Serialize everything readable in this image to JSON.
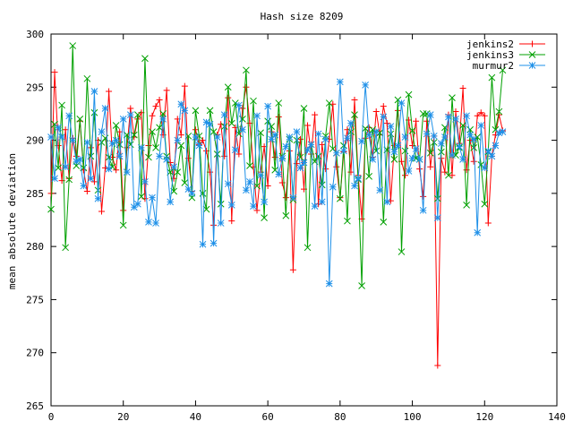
{
  "chart_data": {
    "type": "line",
    "title": "Hash size 8209",
    "xlabel": "",
    "ylabel": "mean absolute deviation",
    "xlim": [
      0,
      140
    ],
    "ylim": [
      265,
      300
    ],
    "xticks": [
      0,
      20,
      40,
      60,
      80,
      100,
      120,
      140
    ],
    "yticks": [
      265,
      270,
      275,
      280,
      285,
      290,
      295,
      300
    ],
    "grid": false,
    "legend_position": "top-right",
    "series": [
      {
        "name": "jenkins2",
        "color": "#ff0000",
        "marker": "plus",
        "x": [
          0,
          1,
          2,
          3,
          4,
          5,
          6,
          7,
          8,
          9,
          10,
          11,
          12,
          13,
          14,
          15,
          16,
          17,
          18,
          19,
          20,
          21,
          22,
          23,
          24,
          25,
          26,
          27,
          28,
          29,
          30,
          31,
          32,
          33,
          34,
          35,
          36,
          37,
          38,
          39,
          40,
          41,
          42,
          43,
          44,
          45,
          46,
          47,
          48,
          49,
          50,
          51,
          52,
          53,
          54,
          55,
          56,
          57,
          58,
          59,
          60,
          61,
          62,
          63,
          64,
          65,
          66,
          67,
          68,
          69,
          70,
          71,
          72,
          73,
          74,
          75,
          76,
          77,
          78,
          79,
          80,
          81,
          82,
          83,
          84,
          85,
          86,
          87,
          88,
          89,
          90,
          91,
          92,
          93,
          94,
          95,
          96,
          97,
          98,
          99,
          100,
          101,
          102,
          103,
          104,
          105,
          106,
          107,
          108,
          109,
          110,
          111,
          112,
          113,
          114,
          115,
          116,
          117,
          118,
          119,
          120,
          121,
          122,
          123,
          124,
          125
        ],
        "y": [
          285.0,
          296.4,
          289.5,
          286.2,
          291.0,
          286.4,
          290.2,
          288.5,
          291.8,
          287.2,
          285.2,
          289.3,
          286.1,
          290.0,
          283.3,
          287.4,
          294.6,
          288.4,
          287.2,
          290.8,
          283.4,
          289.3,
          293.0,
          290.3,
          292.0,
          292.6,
          284.5,
          289.5,
          292.3,
          293.2,
          293.8,
          290.5,
          294.7,
          287.9,
          286.4,
          292.0,
          290.5,
          295.1,
          288.3,
          285.2,
          291.0,
          289.6,
          290.0,
          289.0,
          287.0,
          282.0,
          290.5,
          291.5,
          288.5,
          294.0,
          282.4,
          291.2,
          288.7,
          293.0,
          295.0,
          291.6,
          287.5,
          283.4,
          287.0,
          289.4,
          285.7,
          290.8,
          288.4,
          292.2,
          286.0,
          284.6,
          289.0,
          277.8,
          287.8,
          290.1,
          285.4,
          291.4,
          288.7,
          292.4,
          284.0,
          289.6,
          287.3,
          290.1,
          293.4,
          287.5,
          284.6,
          288.9,
          291.0,
          287.0,
          293.8,
          286.7,
          282.6,
          290.2,
          291.2,
          288.4,
          292.7,
          290.5,
          293.2,
          291.6,
          284.3,
          289.5,
          292.8,
          288.0,
          286.7,
          291.9,
          289.5,
          291.8,
          287.3,
          284.7,
          291.8,
          287.5,
          290.4,
          268.8,
          288.3,
          287.0,
          292.4,
          286.7,
          292.7,
          289.7,
          294.9,
          287.2,
          290.0,
          288.0,
          292.3,
          292.6,
          292.3,
          282.2,
          288.5,
          290.5,
          292.4,
          290.9
        ]
      },
      {
        "name": "jenkins3",
        "color": "#00a000",
        "marker": "cross",
        "x": [
          0,
          1,
          2,
          3,
          4,
          5,
          6,
          7,
          8,
          9,
          10,
          11,
          12,
          13,
          14,
          15,
          16,
          17,
          18,
          19,
          20,
          21,
          22,
          23,
          24,
          25,
          26,
          27,
          28,
          29,
          30,
          31,
          32,
          33,
          34,
          35,
          36,
          37,
          38,
          39,
          40,
          41,
          42,
          43,
          44,
          45,
          46,
          47,
          48,
          49,
          50,
          51,
          52,
          53,
          54,
          55,
          56,
          57,
          58,
          59,
          60,
          61,
          62,
          63,
          64,
          65,
          66,
          67,
          68,
          69,
          70,
          71,
          72,
          73,
          74,
          75,
          76,
          77,
          78,
          79,
          80,
          81,
          82,
          83,
          84,
          85,
          86,
          87,
          88,
          89,
          90,
          91,
          92,
          93,
          94,
          95,
          96,
          97,
          98,
          99,
          100,
          101,
          102,
          103,
          104,
          105,
          106,
          107,
          108,
          109,
          110,
          111,
          112,
          113,
          114,
          115,
          116,
          117,
          118,
          119,
          120,
          121,
          122,
          123,
          124,
          125
        ],
        "y": [
          283.5,
          291.5,
          287.4,
          293.3,
          279.9,
          286.3,
          298.9,
          287.6,
          292.0,
          287.4,
          295.8,
          288.5,
          292.6,
          285.3,
          289.8,
          290.2,
          288.4,
          287.5,
          291.4,
          289.6,
          282.0,
          290.5,
          289.6,
          290.5,
          292.4,
          284.7,
          297.7,
          288.4,
          290.8,
          289.3,
          291.2,
          292.5,
          288.5,
          287.0,
          285.2,
          287.0,
          289.5,
          286.0,
          290.4,
          284.6,
          292.8,
          290.4,
          285.0,
          283.5,
          292.8,
          290.8,
          288.7,
          284.0,
          291.3,
          295.0,
          291.6,
          293.5,
          290.6,
          292.0,
          296.6,
          287.6,
          293.7,
          285.7,
          290.7,
          282.7,
          291.8,
          291.3,
          287.2,
          293.5,
          288.5,
          282.9,
          290.1,
          284.4,
          290.0,
          288.4,
          293.0,
          279.9,
          289.6,
          288.0,
          288.5,
          285.8,
          290.4,
          293.5,
          289.2,
          288.8,
          284.5,
          289.5,
          282.4,
          290.8,
          292.4,
          286.3,
          276.3,
          291.1,
          286.6,
          291.0,
          289.0,
          290.7,
          282.3,
          289.1,
          290.6,
          288.2,
          293.8,
          279.5,
          289.0,
          294.3,
          290.9,
          288.3,
          288.2,
          292.5,
          292.5,
          288.8,
          289.8,
          284.5,
          288.9,
          291.2,
          286.7,
          294.0,
          288.6,
          289.3,
          291.4,
          283.9,
          291.0,
          289.3,
          290.3,
          287.7,
          284.0,
          288.9,
          295.9,
          291.0,
          292.7,
          296.6
        ]
      },
      {
        "name": "murmur2",
        "color": "#1e90e8",
        "marker": "star",
        "x": [
          0,
          1,
          2,
          3,
          4,
          5,
          6,
          7,
          8,
          9,
          10,
          11,
          12,
          13,
          14,
          15,
          16,
          17,
          18,
          19,
          20,
          21,
          22,
          23,
          24,
          25,
          26,
          27,
          28,
          29,
          30,
          31,
          32,
          33,
          34,
          35,
          36,
          37,
          38,
          39,
          40,
          41,
          42,
          43,
          44,
          45,
          46,
          47,
          48,
          49,
          50,
          51,
          52,
          53,
          54,
          55,
          56,
          57,
          58,
          59,
          60,
          61,
          62,
          63,
          64,
          65,
          66,
          67,
          68,
          69,
          70,
          71,
          72,
          73,
          74,
          75,
          76,
          77,
          78,
          79,
          80,
          81,
          82,
          83,
          84,
          85,
          86,
          87,
          88,
          89,
          90,
          91,
          92,
          93,
          94,
          95,
          96,
          97,
          98,
          99,
          100,
          101,
          102,
          103,
          104,
          105,
          106,
          107,
          108,
          109,
          110,
          111,
          112,
          113,
          114,
          115,
          116,
          117,
          118,
          119,
          120,
          121,
          122,
          123,
          124,
          125
        ],
        "y": [
          290.3,
          286.4,
          291.2,
          290.3,
          287.5,
          292.3,
          290.0,
          288.0,
          288.2,
          285.7,
          289.8,
          286.4,
          294.6,
          284.5,
          290.8,
          293.0,
          287.3,
          289.7,
          290.0,
          288.5,
          292.0,
          287.0,
          292.4,
          283.7,
          284.0,
          289.3,
          286.1,
          282.3,
          284.6,
          282.2,
          288.5,
          292.0,
          288.2,
          284.2,
          287.5,
          290.0,
          293.4,
          292.8,
          285.4,
          285.0,
          290.3,
          289.5,
          280.2,
          291.7,
          291.5,
          280.3,
          290.3,
          282.2,
          292.4,
          285.9,
          283.9,
          289.1,
          293.3,
          291.0,
          285.3,
          286.1,
          283.8,
          292.3,
          286.7,
          284.2,
          293.2,
          290.1,
          290.5,
          286.8,
          288.3,
          289.4,
          290.3,
          284.6,
          290.8,
          287.4,
          287.9,
          289.1,
          289.6,
          283.8,
          290.6,
          284.2,
          290.1,
          276.5,
          285.6,
          288.8,
          295.5,
          289.0,
          290.2,
          291.6,
          285.7,
          286.4,
          289.9,
          295.2,
          290.5,
          288.2,
          290.8,
          285.3,
          292.2,
          284.2,
          291.3,
          288.9,
          289.5,
          293.5,
          290.3,
          287.1,
          288.3,
          289.2,
          288.2,
          283.4,
          290.6,
          292.4,
          290.4,
          282.7,
          289.7,
          290.3,
          292.2,
          288.6,
          292.0,
          289.4,
          288.2,
          292.3,
          290.5,
          290.1,
          281.3,
          291.4,
          287.4,
          289.0,
          288.5,
          289.5,
          290.7,
          290.8
        ]
      }
    ]
  }
}
